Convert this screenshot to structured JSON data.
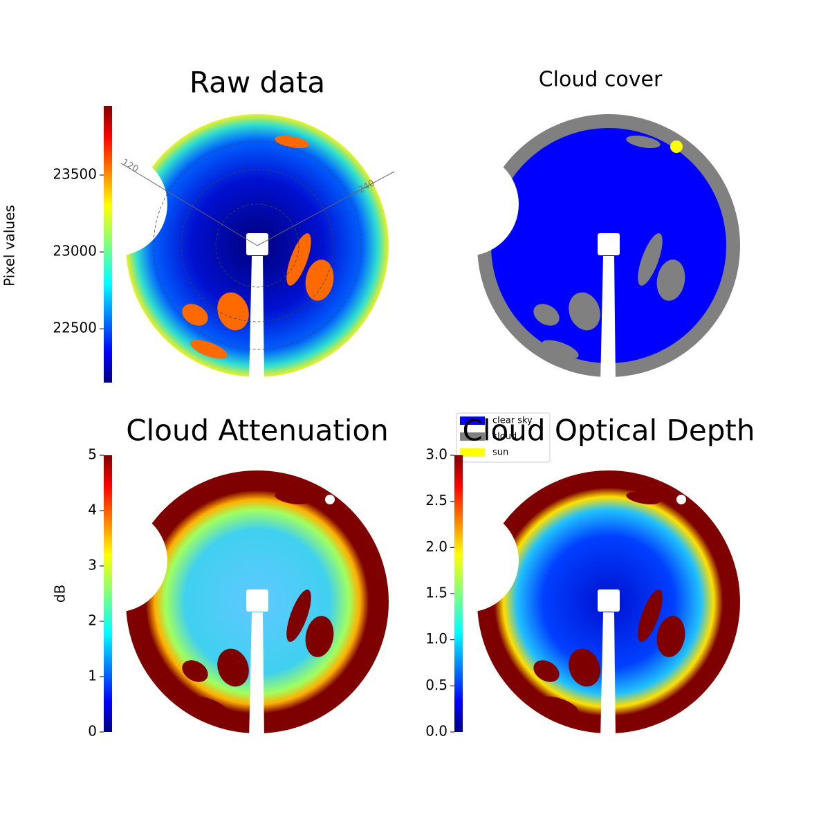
{
  "chart_data": [
    {
      "type": "image",
      "title": "Raw data",
      "ylabel": "Pixel values",
      "ylim": [
        22150,
        23950
      ],
      "yticks": [
        22500,
        23000,
        23500
      ],
      "angle_ticks": [
        120,
        240
      ]
    },
    {
      "type": "category-image",
      "title": "Cloud cover",
      "series": [
        {
          "name": "clear sky",
          "color": "#0000ff"
        },
        {
          "name": "cloud",
          "color": "#808080"
        },
        {
          "name": "sun",
          "color": "#ffff00"
        }
      ]
    },
    {
      "type": "image",
      "title": "Cloud Attenuation",
      "ylabel": "dB",
      "ylim": [
        0,
        5
      ],
      "yticks": [
        0,
        1,
        2,
        3,
        4,
        5
      ]
    },
    {
      "type": "image",
      "title": "Cloud Optical Depth",
      "ylim": [
        0,
        3
      ],
      "yticks": [
        {
          "value": 0,
          "label": "0.0"
        },
        0.5,
        {
          "value": 1,
          "label": "1.0"
        },
        1.5,
        {
          "value": 2,
          "label": "2.0"
        },
        2.5,
        {
          "value": 3,
          "label": "3.0"
        }
      ]
    }
  ]
}
